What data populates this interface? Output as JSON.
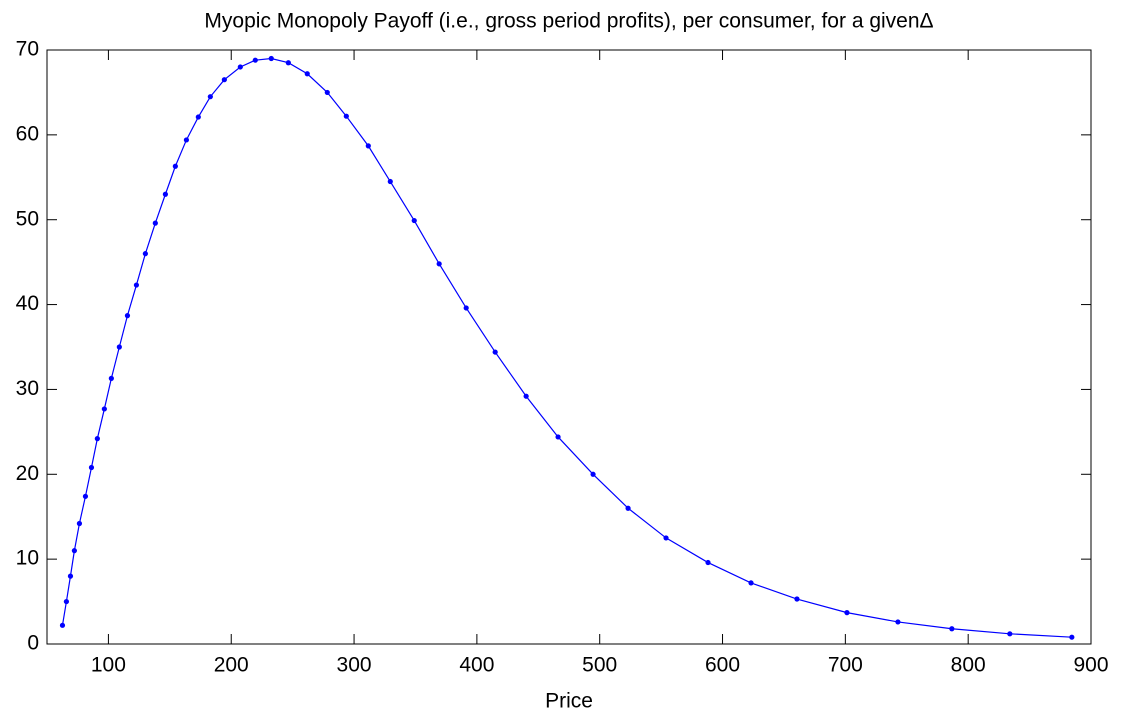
{
  "chart_data": {
    "type": "line",
    "title": "Myopic Monopoly Payoff (i.e., gross period profits), per consumer, for a givenΔ",
    "x_label": "Price",
    "x": [
      62.6,
      65.8,
      69.1,
      72.3,
      76.4,
      81.3,
      86.2,
      91.0,
      96.7,
      102.4,
      108.9,
      115.5,
      122.8,
      130.1,
      138.2,
      146.4,
      154.5,
      163.5,
      173.2,
      183.0,
      194.4,
      207.4,
      219.6,
      232.6,
      246.5,
      261.9,
      278.2,
      293.7,
      311.6,
      329.5,
      349.0,
      369.3,
      391.3,
      414.9,
      440.1,
      466.1,
      494.6,
      523.1,
      554.0,
      588.2,
      623.2,
      660.6,
      701.3,
      742.8,
      786.7,
      833.9,
      884.4
    ],
    "series": [
      {
        "color": "#0000ff",
        "values": [
          2.2,
          5.0,
          8.0,
          11.0,
          14.2,
          17.4,
          20.8,
          24.2,
          27.7,
          31.3,
          35.0,
          38.7,
          42.3,
          46.0,
          49.6,
          53.0,
          56.3,
          59.4,
          62.1,
          64.5,
          66.5,
          68.0,
          68.8,
          69.0,
          68.5,
          67.2,
          65.0,
          62.2,
          58.7,
          54.5,
          49.9,
          44.8,
          39.6,
          34.4,
          29.2,
          24.4,
          20.0,
          16.0,
          12.5,
          9.6,
          7.2,
          5.3,
          3.7,
          2.6,
          1.8,
          1.2,
          0.8
        ]
      }
    ],
    "xlim": [
      50,
      900
    ],
    "xticks": [
      100,
      200,
      300,
      400,
      500,
      600,
      700,
      800,
      900
    ],
    "ylim": [
      0,
      70
    ],
    "yticks": [
      0,
      10,
      20,
      30,
      40,
      50,
      60,
      70
    ],
    "grid": false
  }
}
